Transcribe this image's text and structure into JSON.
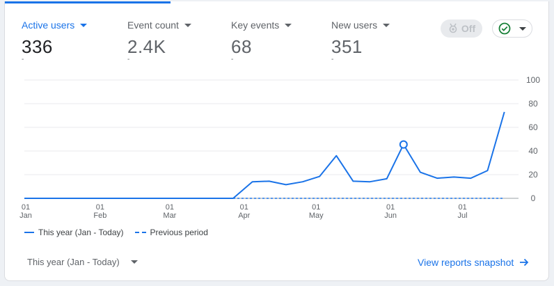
{
  "metrics": [
    {
      "label": "Active users",
      "value": "336",
      "sub": "-"
    },
    {
      "label": "Event count",
      "value": "2.4K",
      "sub": "-"
    },
    {
      "label": "Key events",
      "value": "68",
      "sub": "-"
    },
    {
      "label": "New users",
      "value": "351",
      "sub": "-"
    }
  ],
  "controls": {
    "off_label": "Off",
    "off_icon": "medal-icon",
    "status_icon": "check-circle-icon"
  },
  "legend": {
    "this_year": "This year (Jan - Today)",
    "previous": "Previous period"
  },
  "footer": {
    "period_select": "This year (Jan - Today)",
    "view_link": "View reports snapshot"
  },
  "colors": {
    "accent": "#1a73e8",
    "status_green": "#188038"
  },
  "chart_data": {
    "type": "line",
    "x_tick_labels": [
      {
        "day": "01",
        "month": "Jan"
      },
      {
        "day": "01",
        "month": "Feb"
      },
      {
        "day": "01",
        "month": "Mar"
      },
      {
        "day": "01",
        "month": "Apr"
      },
      {
        "day": "01",
        "month": "May"
      },
      {
        "day": "01",
        "month": "Jun"
      },
      {
        "day": "01",
        "month": "Jul"
      }
    ],
    "y_ticks": [
      0,
      20,
      40,
      60,
      80,
      100
    ],
    "ylim": [
      0,
      100
    ],
    "grid": true,
    "legend_position": "bottom-left",
    "series": [
      {
        "name": "This year (Jan - Today)",
        "style": "solid",
        "points": [
          [
            "2024-01-01",
            0
          ],
          [
            "2024-03-28",
            0
          ],
          [
            "2024-04-05",
            14
          ],
          [
            "2024-04-12",
            14.5
          ],
          [
            "2024-04-19",
            11.5
          ],
          [
            "2024-04-26",
            14
          ],
          [
            "2024-05-03",
            18.5
          ],
          [
            "2024-05-10",
            36
          ],
          [
            "2024-05-17",
            14.5
          ],
          [
            "2024-05-24",
            14
          ],
          [
            "2024-05-31",
            16.5
          ],
          [
            "2024-06-07",
            45.5
          ],
          [
            "2024-06-14",
            22
          ],
          [
            "2024-06-21",
            17
          ],
          [
            "2024-06-28",
            18
          ],
          [
            "2024-07-05",
            17
          ],
          [
            "2024-07-12",
            23.5
          ],
          [
            "2024-07-19",
            73
          ]
        ],
        "highlight_date": "2024-06-07"
      },
      {
        "name": "Previous period",
        "style": "dashed",
        "points": [
          [
            "2024-03-28",
            0
          ],
          [
            "2024-07-19",
            0
          ]
        ]
      }
    ]
  }
}
